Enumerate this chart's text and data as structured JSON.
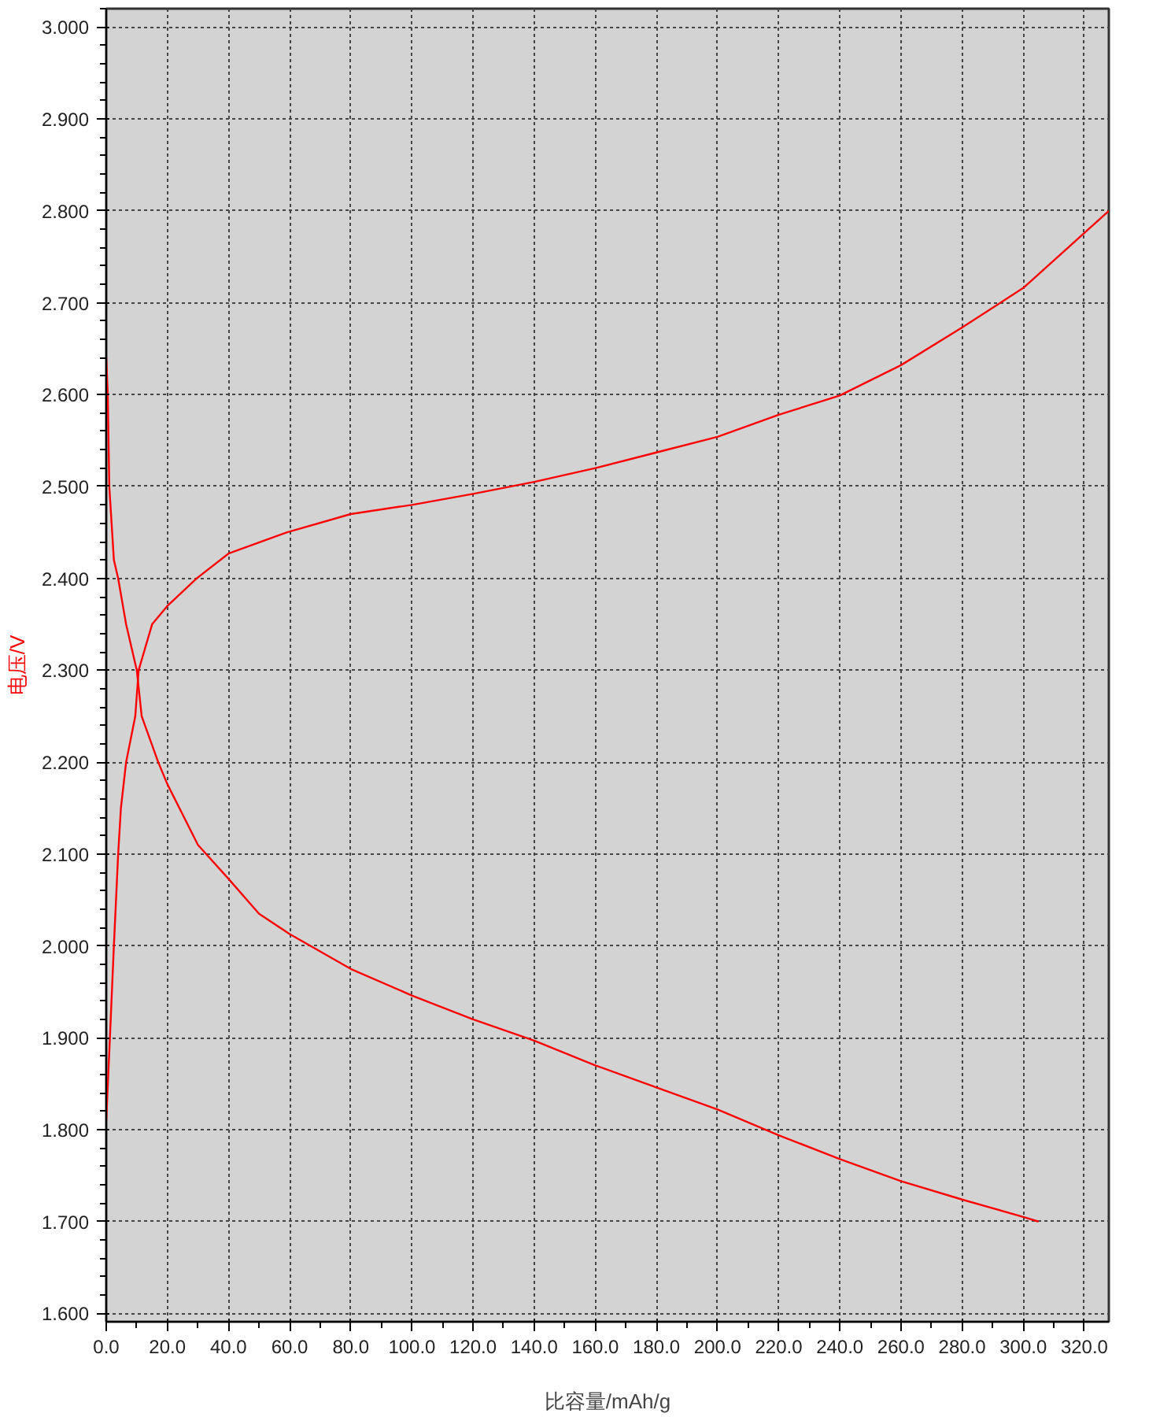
{
  "chart_data": {
    "type": "line",
    "xlabel": "比容量/mAh/g",
    "ylabel": "电压/V",
    "xlim": [
      0,
      328
    ],
    "ylim": [
      1.591,
      3.02
    ],
    "xticks": [
      {
        "value": 0,
        "label": "0.0"
      },
      {
        "value": 20,
        "label": "20.0"
      },
      {
        "value": 40,
        "label": "40.0"
      },
      {
        "value": 60,
        "label": "60.0"
      },
      {
        "value": 80,
        "label": "80.0"
      },
      {
        "value": 100,
        "label": "100.0"
      },
      {
        "value": 120,
        "label": "120.0"
      },
      {
        "value": 140,
        "label": "140.0"
      },
      {
        "value": 160,
        "label": "160.0"
      },
      {
        "value": 180,
        "label": "180.0"
      },
      {
        "value": 200,
        "label": "200.0"
      },
      {
        "value": 220,
        "label": "220.0"
      },
      {
        "value": 240,
        "label": "240.0"
      },
      {
        "value": 260,
        "label": "260.0"
      },
      {
        "value": 280,
        "label": "280.0"
      },
      {
        "value": 300,
        "label": "300.0"
      },
      {
        "value": 320,
        "label": "320.0"
      }
    ],
    "yticks": [
      {
        "value": 1.6,
        "label": "1.600"
      },
      {
        "value": 1.7,
        "label": "1.700"
      },
      {
        "value": 1.8,
        "label": "1.800"
      },
      {
        "value": 1.9,
        "label": "1.900"
      },
      {
        "value": 2.0,
        "label": "2.000"
      },
      {
        "value": 2.1,
        "label": "2.100"
      },
      {
        "value": 2.2,
        "label": "2.200"
      },
      {
        "value": 2.3,
        "label": "2.300"
      },
      {
        "value": 2.4,
        "label": "2.400"
      },
      {
        "value": 2.5,
        "label": "2.500"
      },
      {
        "value": 2.6,
        "label": "2.600"
      },
      {
        "value": 2.7,
        "label": "2.700"
      },
      {
        "value": 2.8,
        "label": "2.800"
      },
      {
        "value": 2.9,
        "label": "2.900"
      },
      {
        "value": 3.0,
        "label": "3.000"
      }
    ],
    "grid": true,
    "line_style": "solid",
    "marker": "none",
    "series": [
      {
        "color": "#ff0000",
        "x": [
          0,
          1.2,
          2.5,
          3.9,
          4.8,
          6.5,
          9.5,
          10.6,
          15,
          20,
          29.6,
          40,
          59,
          80,
          100,
          120,
          140,
          160,
          180,
          200,
          220,
          240,
          260,
          280,
          300,
          320,
          328
        ],
        "values": [
          1.81,
          1.9,
          2.0,
          2.1,
          2.15,
          2.2,
          2.25,
          2.3,
          2.35,
          2.37,
          2.4,
          2.427,
          2.45,
          2.47,
          2.48,
          2.492,
          2.505,
          2.52,
          2.537,
          2.554,
          2.578,
          2.599,
          2.632,
          2.673,
          2.716,
          2.776,
          2.8
        ]
      },
      {
        "color": "#ff0000",
        "x": [
          0,
          0.5,
          1,
          2.5,
          3.9,
          6.5,
          10,
          11.6,
          17,
          20,
          30,
          40,
          50,
          60,
          80,
          100,
          120,
          140,
          160,
          180,
          200,
          220,
          240,
          260,
          280,
          300,
          305
        ],
        "values": [
          2.64,
          2.6,
          2.5,
          2.42,
          2.4,
          2.35,
          2.3,
          2.25,
          2.2,
          2.176,
          2.11,
          2.073,
          2.035,
          2.013,
          1.975,
          1.946,
          1.92,
          1.897,
          1.87,
          1.846,
          1.822,
          1.794,
          1.768,
          1.744,
          1.724,
          1.705,
          1.7
        ]
      }
    ]
  }
}
